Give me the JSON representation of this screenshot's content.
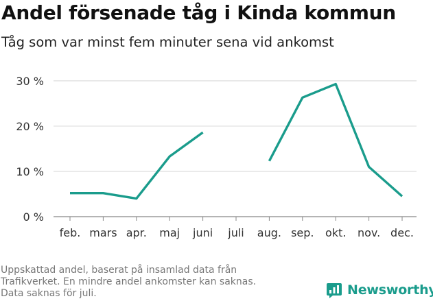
{
  "title": "Andel försenade tåg i Kinda kommun",
  "subtitle": "Tåg som var minst fem minuter sena vid ankomst",
  "source_lines": [
    "Uppskattad andel, baserat på insamlad data från",
    "Trafikverket. En mindre andel ankomster kan saknas.",
    "Data saknas för juli."
  ],
  "logo": {
    "text": "Newsworthy",
    "icon": "bar-chart-icon"
  },
  "colors": {
    "line": "#1a9c8c",
    "grid": "#dddddd",
    "logo": "#1a9c8c"
  },
  "chart_data": {
    "type": "line",
    "categories": [
      "feb.",
      "mars",
      "apr.",
      "maj",
      "juni",
      "juli",
      "aug.",
      "sep.",
      "okt.",
      "nov.",
      "dec."
    ],
    "series": [
      {
        "values": [
          5.2,
          5.2,
          4.0,
          13.3,
          18.6,
          null,
          12.3,
          26.3,
          29.3,
          11.0,
          4.5
        ]
      }
    ],
    "yticks": [
      0,
      10,
      20,
      30
    ],
    "ytick_labels": [
      "0 %",
      "10 %",
      "20 %",
      "30 %"
    ],
    "ylim": [
      0,
      31.5
    ],
    "grid": true,
    "xlabel": "",
    "ylabel": ""
  }
}
